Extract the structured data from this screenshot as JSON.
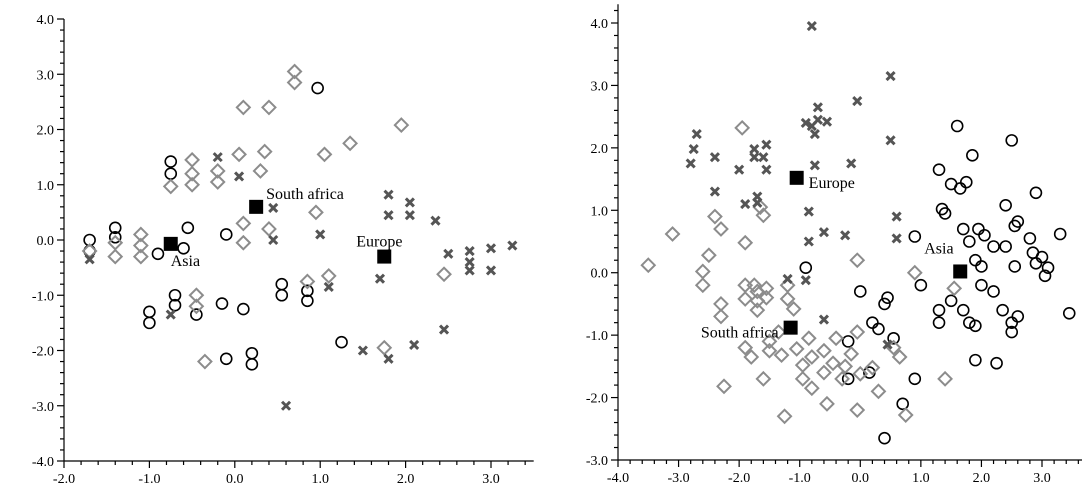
{
  "chart_data": [
    {
      "type": "scatter",
      "xlim": [
        -2.0,
        3.5
      ],
      "ylim": [
        -4.0,
        4.0
      ],
      "x_ticks": [
        -2.0,
        -1.0,
        0.0,
        1.0,
        2.0,
        3.0
      ],
      "x_tick_labels": [
        "-2.0",
        "-1.0",
        "0.0",
        "1.0",
        "2.0",
        "3.0"
      ],
      "y_ticks": [
        -4.0,
        -3.0,
        -2.0,
        -1.0,
        0.0,
        1.0,
        2.0,
        3.0,
        4.0
      ],
      "y_tick_labels": [
        "-4.0",
        "-3.0",
        "-2.0",
        "-1.0",
        "0.0",
        "1.0",
        "2.0",
        "3.0",
        "4.0"
      ],
      "grid": false,
      "series": [
        {
          "marker": "circle",
          "points": [
            [
              -1.7,
              0.0
            ],
            [
              -1.7,
              -0.2
            ],
            [
              -1.4,
              0.22
            ],
            [
              -1.4,
              0.05
            ],
            [
              -1.0,
              -1.3
            ],
            [
              -1.0,
              -1.5
            ],
            [
              -0.9,
              -0.25
            ],
            [
              -0.75,
              1.42
            ],
            [
              -0.75,
              1.2
            ],
            [
              -0.7,
              -1.0
            ],
            [
              -0.7,
              -1.18
            ],
            [
              -0.6,
              -0.15
            ],
            [
              -0.55,
              0.22
            ],
            [
              -0.45,
              -1.35
            ],
            [
              -0.15,
              -1.15
            ],
            [
              -0.1,
              0.1
            ],
            [
              -0.1,
              -2.15
            ],
            [
              0.1,
              -1.25
            ],
            [
              0.2,
              -2.05
            ],
            [
              0.2,
              -2.25
            ],
            [
              0.55,
              -0.8
            ],
            [
              0.55,
              -1.0
            ],
            [
              0.85,
              -0.92
            ],
            [
              0.85,
              -1.1
            ],
            [
              0.97,
              2.75
            ],
            [
              1.25,
              -1.85
            ]
          ]
        },
        {
          "marker": "diamond",
          "points": [
            [
              -1.7,
              -0.2
            ],
            [
              -1.4,
              -0.05
            ],
            [
              -1.4,
              -0.3
            ],
            [
              -1.1,
              0.1
            ],
            [
              -1.1,
              -0.1
            ],
            [
              -1.1,
              -0.3
            ],
            [
              -0.75,
              0.97
            ],
            [
              -0.5,
              1.45
            ],
            [
              -0.5,
              1.2
            ],
            [
              -0.5,
              1.0
            ],
            [
              -0.45,
              -1.0
            ],
            [
              -0.45,
              -1.2
            ],
            [
              -0.35,
              -2.2
            ],
            [
              -0.2,
              1.05
            ],
            [
              -0.2,
              1.25
            ],
            [
              0.05,
              1.55
            ],
            [
              0.1,
              2.4
            ],
            [
              0.1,
              0.3
            ],
            [
              0.1,
              -0.05
            ],
            [
              0.3,
              1.25
            ],
            [
              0.35,
              1.6
            ],
            [
              0.4,
              2.4
            ],
            [
              0.4,
              0.2
            ],
            [
              0.7,
              3.05
            ],
            [
              0.7,
              2.85
            ],
            [
              0.85,
              -0.75
            ],
            [
              0.95,
              0.5
            ],
            [
              1.05,
              1.55
            ],
            [
              1.1,
              -0.65
            ],
            [
              1.35,
              1.75
            ],
            [
              1.75,
              -1.95
            ],
            [
              1.95,
              2.08
            ],
            [
              2.45,
              -0.62
            ]
          ]
        },
        {
          "marker": "cross",
          "points": [
            [
              -1.7,
              -0.35
            ],
            [
              -0.75,
              -1.35
            ],
            [
              -0.2,
              1.5
            ],
            [
              0.05,
              1.15
            ],
            [
              0.45,
              0.58
            ],
            [
              0.45,
              0.0
            ],
            [
              0.6,
              -3.0
            ],
            [
              1.0,
              0.1
            ],
            [
              1.1,
              -0.85
            ],
            [
              1.5,
              -2.0
            ],
            [
              1.7,
              -0.7
            ],
            [
              1.8,
              0.82
            ],
            [
              1.8,
              0.45
            ],
            [
              1.8,
              -2.15
            ],
            [
              2.05,
              0.68
            ],
            [
              2.05,
              0.45
            ],
            [
              2.1,
              -1.9
            ],
            [
              2.35,
              0.35
            ],
            [
              2.45,
              -1.62
            ],
            [
              2.5,
              -0.25
            ],
            [
              2.75,
              -0.2
            ],
            [
              2.75,
              -0.4
            ],
            [
              2.75,
              -0.55
            ],
            [
              3.0,
              -0.15
            ],
            [
              3.0,
              -0.55
            ],
            [
              3.25,
              -0.1
            ]
          ]
        }
      ],
      "centroids": [
        {
          "label": "Asia",
          "x": -0.75,
          "y": -0.07
        },
        {
          "label": "South africa",
          "x": 0.25,
          "y": 0.6
        },
        {
          "label": "Europe",
          "x": 1.75,
          "y": -0.3
        }
      ]
    },
    {
      "type": "scatter",
      "xlim": [
        -4.0,
        3.7
      ],
      "ylim": [
        -3.0,
        4.3
      ],
      "x_ticks": [
        -4.0,
        -3.0,
        -2.0,
        -1.0,
        0.0,
        1.0,
        2.0,
        3.0
      ],
      "x_tick_labels": [
        "-4.0",
        "-3.0",
        "-2.0",
        "-1.0",
        "0.0",
        "1.0",
        "2.0",
        "3.0"
      ],
      "y_ticks": [
        -3.0,
        -2.0,
        -1.0,
        0.0,
        1.0,
        2.0,
        3.0,
        4.0
      ],
      "y_tick_labels": [
        "-3.0",
        "-2.0",
        "-1.0",
        "0.0",
        "1.0",
        "2.0",
        "3.0",
        "4.0"
      ],
      "grid": false,
      "series": [
        {
          "marker": "circle",
          "points": [
            [
              -0.9,
              0.08
            ],
            [
              -0.2,
              -1.1
            ],
            [
              -0.2,
              -1.7
            ],
            [
              0.0,
              -0.3
            ],
            [
              0.15,
              -1.6
            ],
            [
              0.2,
              -0.8
            ],
            [
              0.3,
              -0.9
            ],
            [
              0.4,
              -0.5
            ],
            [
              0.4,
              -2.65
            ],
            [
              0.45,
              -0.4
            ],
            [
              0.55,
              -1.05
            ],
            [
              0.7,
              -2.1
            ],
            [
              0.9,
              0.58
            ],
            [
              0.9,
              -1.7
            ],
            [
              1.0,
              -0.2
            ],
            [
              1.3,
              -0.6
            ],
            [
              1.3,
              -0.8
            ],
            [
              1.3,
              1.65
            ],
            [
              1.35,
              1.02
            ],
            [
              1.4,
              0.95
            ],
            [
              1.5,
              1.42
            ],
            [
              1.5,
              -0.45
            ],
            [
              1.6,
              2.35
            ],
            [
              1.65,
              1.35
            ],
            [
              1.7,
              0.7
            ],
            [
              1.7,
              -0.6
            ],
            [
              1.75,
              1.45
            ],
            [
              1.8,
              0.5
            ],
            [
              1.8,
              -0.8
            ],
            [
              1.85,
              1.88
            ],
            [
              1.9,
              0.2
            ],
            [
              1.9,
              -1.4
            ],
            [
              1.9,
              -0.85
            ],
            [
              1.95,
              0.7
            ],
            [
              2.0,
              0.1
            ],
            [
              2.0,
              -0.2
            ],
            [
              2.05,
              0.6
            ],
            [
              2.2,
              0.42
            ],
            [
              2.2,
              -0.3
            ],
            [
              2.25,
              -1.45
            ],
            [
              2.35,
              -0.6
            ],
            [
              2.4,
              0.42
            ],
            [
              2.4,
              1.08
            ],
            [
              2.5,
              -0.8
            ],
            [
              2.5,
              -0.95
            ],
            [
              2.5,
              2.12
            ],
            [
              2.55,
              0.75
            ],
            [
              2.55,
              0.1
            ],
            [
              2.6,
              0.82
            ],
            [
              2.6,
              -0.7
            ],
            [
              2.8,
              0.55
            ],
            [
              2.85,
              0.32
            ],
            [
              2.9,
              1.28
            ],
            [
              2.9,
              0.15
            ],
            [
              3.0,
              0.25
            ],
            [
              3.05,
              -0.05
            ],
            [
              3.1,
              0.08
            ],
            [
              3.3,
              0.62
            ],
            [
              3.45,
              -0.65
            ]
          ]
        },
        {
          "marker": "diamond",
          "points": [
            [
              -3.5,
              0.12
            ],
            [
              -3.1,
              0.62
            ],
            [
              -2.6,
              0.02
            ],
            [
              -2.6,
              -0.2
            ],
            [
              -2.5,
              0.28
            ],
            [
              -2.4,
              0.9
            ],
            [
              -2.3,
              0.7
            ],
            [
              -2.3,
              -0.5
            ],
            [
              -2.3,
              -0.7
            ],
            [
              -2.25,
              -1.82
            ],
            [
              -1.95,
              2.32
            ],
            [
              -1.9,
              0.48
            ],
            [
              -1.9,
              -0.2
            ],
            [
              -1.9,
              -0.42
            ],
            [
              -1.9,
              -1.2
            ],
            [
              -1.8,
              -1.35
            ],
            [
              -1.75,
              -0.2
            ],
            [
              -1.7,
              -0.3
            ],
            [
              -1.7,
              -0.45
            ],
            [
              -1.7,
              -0.6
            ],
            [
              -1.65,
              1.05
            ],
            [
              -1.6,
              0.92
            ],
            [
              -1.6,
              -1.7
            ],
            [
              -1.55,
              -0.25
            ],
            [
              -1.55,
              -0.4
            ],
            [
              -1.5,
              -1.1
            ],
            [
              -1.5,
              -1.25
            ],
            [
              -1.35,
              -0.95
            ],
            [
              -1.3,
              -1.32
            ],
            [
              -1.25,
              -2.3
            ],
            [
              -1.2,
              -0.2
            ],
            [
              -1.2,
              -0.42
            ],
            [
              -1.1,
              -0.58
            ],
            [
              -1.05,
              -1.22
            ],
            [
              -0.95,
              -1.48
            ],
            [
              -0.95,
              -1.7
            ],
            [
              -0.85,
              -1.05
            ],
            [
              -0.8,
              -1.35
            ],
            [
              -0.8,
              -1.85
            ],
            [
              -0.6,
              -1.25
            ],
            [
              -0.6,
              -1.6
            ],
            [
              -0.55,
              -2.1
            ],
            [
              -0.45,
              -1.45
            ],
            [
              -0.4,
              -1.05
            ],
            [
              -0.3,
              -1.7
            ],
            [
              -0.25,
              -1.5
            ],
            [
              -0.15,
              -1.3
            ],
            [
              -0.05,
              0.2
            ],
            [
              -0.05,
              -0.95
            ],
            [
              -0.05,
              -2.2
            ],
            [
              0.0,
              -1.62
            ],
            [
              0.2,
              -1.52
            ],
            [
              0.3,
              -1.9
            ],
            [
              0.55,
              -1.2
            ],
            [
              0.65,
              -1.35
            ],
            [
              0.75,
              -2.28
            ],
            [
              0.9,
              0.0
            ],
            [
              1.4,
              -1.7
            ],
            [
              1.55,
              -0.25
            ]
          ]
        },
        {
          "marker": "cross",
          "points": [
            [
              -2.8,
              1.75
            ],
            [
              -2.75,
              1.98
            ],
            [
              -2.7,
              2.22
            ],
            [
              -2.4,
              1.85
            ],
            [
              -2.4,
              1.3
            ],
            [
              -2.0,
              1.65
            ],
            [
              -1.9,
              1.1
            ],
            [
              -1.75,
              1.98
            ],
            [
              -1.75,
              1.85
            ],
            [
              -1.7,
              1.22
            ],
            [
              -1.7,
              1.12
            ],
            [
              -1.6,
              1.85
            ],
            [
              -1.55,
              1.65
            ],
            [
              -1.55,
              2.05
            ],
            [
              -1.2,
              -0.1
            ],
            [
              -0.9,
              2.4
            ],
            [
              -0.9,
              -0.12
            ],
            [
              -0.85,
              0.98
            ],
            [
              -0.85,
              0.5
            ],
            [
              -0.8,
              3.95
            ],
            [
              -0.8,
              2.35
            ],
            [
              -0.75,
              2.22
            ],
            [
              -0.75,
              1.72
            ],
            [
              -0.7,
              2.65
            ],
            [
              -0.7,
              2.45
            ],
            [
              -0.6,
              -0.75
            ],
            [
              -0.6,
              0.65
            ],
            [
              -0.55,
              2.42
            ],
            [
              -0.25,
              0.6
            ],
            [
              -0.15,
              1.75
            ],
            [
              -0.05,
              2.75
            ],
            [
              0.45,
              -1.15
            ],
            [
              0.5,
              3.15
            ],
            [
              0.5,
              2.12
            ],
            [
              0.6,
              0.9
            ],
            [
              0.6,
              0.55
            ]
          ]
        }
      ],
      "centroids": [
        {
          "label": "Europe",
          "x": -1.05,
          "y": 1.52
        },
        {
          "label": "Asia",
          "x": 1.65,
          "y": 0.02
        },
        {
          "label": "South africa",
          "x": -1.15,
          "y": -0.88
        }
      ]
    }
  ]
}
